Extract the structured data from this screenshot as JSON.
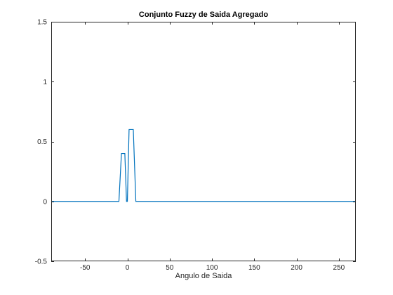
{
  "chart_data": {
    "type": "line",
    "title": "Conjunto Fuzzy de Saida Agregado",
    "xlabel": "Angulo de Saida",
    "ylabel": "",
    "xlim": [
      -90,
      270
    ],
    "ylim": [
      -0.5,
      1.5
    ],
    "xticks": [
      -50,
      0,
      50,
      100,
      150,
      200,
      250
    ],
    "yticks": [
      -0.5,
      0,
      0.5,
      1,
      1.5
    ],
    "xtick_labels": [
      "-50",
      "0",
      "50",
      "100",
      "150",
      "200",
      "250"
    ],
    "ytick_labels": [
      "-0.5",
      "0",
      "0.5",
      "1",
      "1.5"
    ],
    "grid": false,
    "series": [
      {
        "color": "#0072bd",
        "x": [
          -90,
          -10,
          -7,
          -3,
          -1,
          0,
          2,
          4,
          7,
          10,
          270
        ],
        "y": [
          0,
          0,
          0.4,
          0.4,
          0,
          0,
          0.6,
          0.6,
          0.6,
          0,
          0
        ]
      }
    ]
  }
}
